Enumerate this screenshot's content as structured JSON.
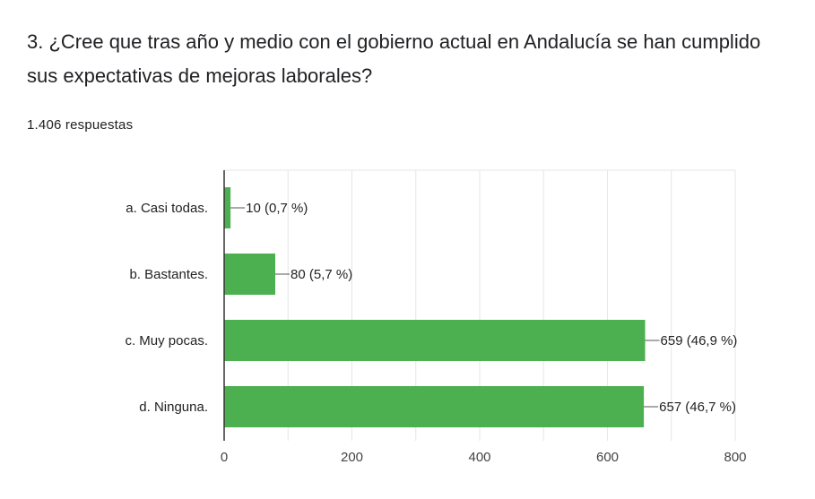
{
  "question": {
    "title": "3. ¿Cree que tras año y medio con el gobierno actual en Andalucía se han cumplido sus expectativas de mejoras laborales?",
    "response_count": "1.406 respuestas"
  },
  "colors": {
    "bar": "#4caf50",
    "grid": "#e6e6e6",
    "axis": "#333333"
  },
  "chart_data": {
    "type": "bar",
    "orientation": "horizontal",
    "categories": [
      "a. Casi todas.",
      "b. Bastantes.",
      "c. Muy pocas.",
      "d. Ninguna."
    ],
    "values": [
      10,
      80,
      659,
      657
    ],
    "data_labels": [
      "10 (0,7 %)",
      "80 (5,7 %)",
      "659 (46,9 %)",
      "657 (46,7 %)"
    ],
    "xlim": [
      0,
      800
    ],
    "xticks": [
      0,
      200,
      400,
      600,
      800
    ],
    "grid": true,
    "legend": "none"
  }
}
